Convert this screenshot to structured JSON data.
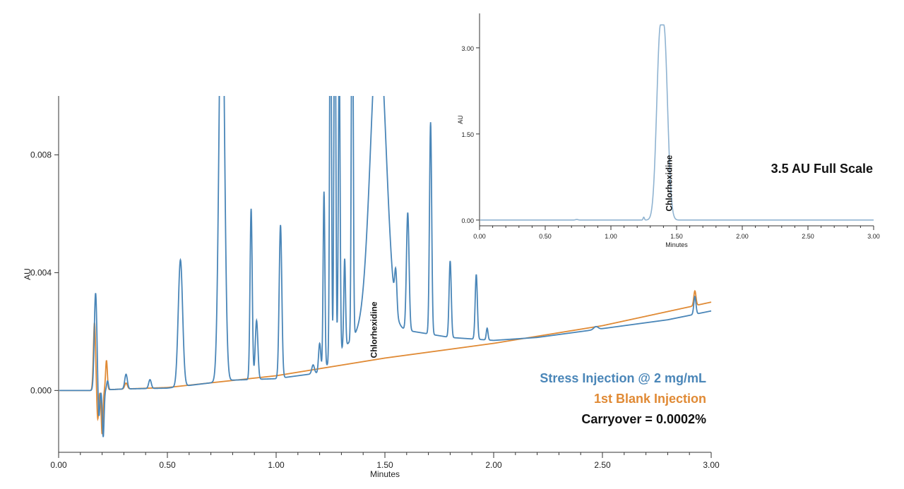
{
  "colors": {
    "stress": "#4a86b8",
    "blank": "#e08a35",
    "inset_trace": "#8fb3d1",
    "axis": "#333333"
  },
  "chart_data": [
    {
      "type": "line",
      "xlabel": "Minutes",
      "ylabel": "AU",
      "xlim": [
        0.0,
        3.0
      ],
      "ylim": [
        -0.0021,
        0.01
      ],
      "xticks": [
        "0.00",
        "0.50",
        "1.00",
        "1.50",
        "2.00",
        "2.50",
        "3.00"
      ],
      "yticks": [
        "0.000",
        "0.004",
        "0.008"
      ],
      "grid": false,
      "annotations": [
        {
          "text": "Chlorhexidine",
          "x": 1.45,
          "y": 0.0011
        }
      ],
      "series": [
        {
          "name": "Stress Injection @ 2 mg/mL",
          "color": "#4a86b8",
          "baseline": {
            "x": [
              0.0,
              0.15,
              0.3,
              0.5,
              0.8,
              1.0,
              1.2,
              1.45,
              1.55,
              1.8,
              2.0,
              2.2,
              2.5,
              2.8,
              3.0
            ],
            "y": [
              0.0,
              0.0,
              5e-05,
              8e-05,
              0.00035,
              0.0004,
              0.0006,
              0.0025,
              0.0021,
              0.0018,
              0.0017,
              0.0018,
              0.0021,
              0.0024,
              0.0027
            ]
          },
          "peaks": [
            {
              "x": 0.17,
              "h": 0.0033,
              "w": 0.006
            },
            {
              "x": 0.185,
              "h": -0.001,
              "w": 0.004
            },
            {
              "x": 0.205,
              "h": -0.0016,
              "w": 0.004
            },
            {
              "x": 0.225,
              "h": 0.0003,
              "w": 0.004
            },
            {
              "x": 0.31,
              "h": 0.0005,
              "w": 0.006
            },
            {
              "x": 0.42,
              "h": 0.0003,
              "w": 0.006
            },
            {
              "x": 0.56,
              "h": 0.0043,
              "w": 0.01
            },
            {
              "x": 0.75,
              "h": 0.015,
              "w": 0.012
            },
            {
              "x": 0.885,
              "h": 0.0058,
              "w": 0.005
            },
            {
              "x": 0.91,
              "h": 0.002,
              "w": 0.006
            },
            {
              "x": 1.02,
              "h": 0.0052,
              "w": 0.006
            },
            {
              "x": 1.17,
              "h": 0.0003,
              "w": 0.006
            },
            {
              "x": 1.2,
              "h": 0.001,
              "w": 0.005
            },
            {
              "x": 1.22,
              "h": 0.006,
              "w": 0.004
            },
            {
              "x": 1.25,
              "h": 0.015,
              "w": 0.004
            },
            {
              "x": 1.27,
              "h": 0.015,
              "w": 0.004
            },
            {
              "x": 1.29,
              "h": 0.01,
              "w": 0.004
            },
            {
              "x": 1.315,
              "h": 0.003,
              "w": 0.004
            },
            {
              "x": 1.35,
              "h": 0.015,
              "w": 0.004
            },
            {
              "x": 1.47,
              "h": 0.01,
              "w": 0.035
            },
            {
              "x": 1.55,
              "h": 0.0013,
              "w": 0.005
            },
            {
              "x": 1.605,
              "h": 0.004,
              "w": 0.006
            },
            {
              "x": 1.71,
              "h": 0.0072,
              "w": 0.005
            },
            {
              "x": 1.8,
              "h": 0.0026,
              "w": 0.005
            },
            {
              "x": 1.92,
              "h": 0.0022,
              "w": 0.005
            },
            {
              "x": 1.97,
              "h": 0.0004,
              "w": 0.004
            },
            {
              "x": 2.47,
              "h": 0.0001,
              "w": 0.01
            },
            {
              "x": 2.925,
              "h": 0.0006,
              "w": 0.005
            }
          ]
        },
        {
          "name": "1st Blank Injection",
          "color": "#e08a35",
          "baseline": {
            "x": [
              0.0,
              0.15,
              0.3,
              0.5,
              1.0,
              1.5,
              2.0,
              2.5,
              3.0
            ],
            "y": [
              0.0,
              0.0,
              5e-05,
              0.0001,
              0.0005,
              0.0011,
              0.0016,
              0.0022,
              0.003
            ]
          },
          "peaks": [
            {
              "x": 0.165,
              "h": 0.0023,
              "w": 0.005
            },
            {
              "x": 0.18,
              "h": -0.001,
              "w": 0.004
            },
            {
              "x": 0.2,
              "h": -0.0015,
              "w": 0.004
            },
            {
              "x": 0.22,
              "h": 0.001,
              "w": 0.004
            },
            {
              "x": 0.31,
              "h": 0.0002,
              "w": 0.006
            },
            {
              "x": 2.925,
              "h": 0.0005,
              "w": 0.005
            }
          ]
        }
      ]
    },
    {
      "type": "line",
      "xlabel": "Minutes",
      "ylabel": "AU",
      "xlim": [
        0.0,
        3.0
      ],
      "ylim": [
        -0.1,
        3.6
      ],
      "xticks": [
        "0.00",
        "0.50",
        "1.00",
        "1.50",
        "2.00",
        "2.50",
        "3.00"
      ],
      "yticks": [
        "0.00",
        "1.50",
        "3.00"
      ],
      "grid": false,
      "annotations": [
        {
          "text": "Chlorhexidine",
          "x": 1.45,
          "y": 0.15
        }
      ],
      "series": [
        {
          "name": "",
          "color": "#8fb3d1",
          "baseline": {
            "x": [
              0.0,
              3.0
            ],
            "y": [
              0.0,
              0.0
            ]
          },
          "peaks": [
            {
              "x": 0.74,
              "h": 0.01,
              "w": 0.01
            },
            {
              "x": 1.25,
              "h": 0.05,
              "w": 0.005
            },
            {
              "x": 1.39,
              "h": 3.4,
              "w": 0.028,
              "flat": 0.025
            }
          ]
        }
      ]
    }
  ],
  "legend": {
    "stress_label": "Stress Injection @ 2 mg/mL",
    "blank_label": "1st Blank Injection",
    "carryover_label": "Carryover = 0.0002%"
  },
  "inset_label": "3.5 AU Full Scale"
}
